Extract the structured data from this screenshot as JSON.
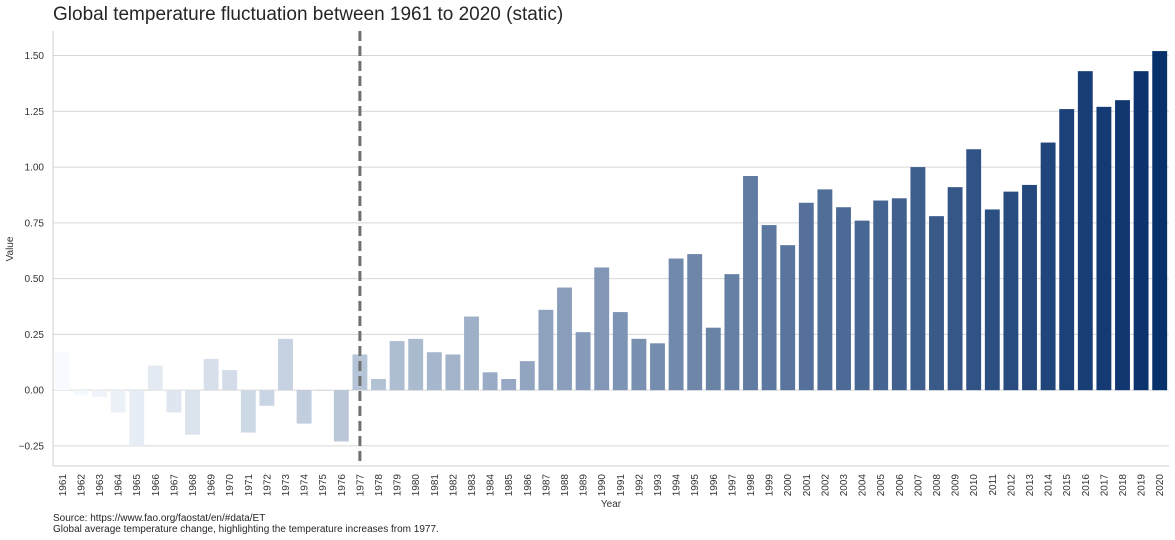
{
  "chart_data": {
    "type": "bar",
    "title": "Global temperature fluctuation between 1961 to 2020 (static)",
    "xlabel": "Year",
    "ylabel": "Value",
    "ylim": [
      -0.34,
      1.61
    ],
    "yticks": [
      -0.25,
      0.0,
      0.25,
      0.5,
      0.75,
      1.0,
      1.25,
      1.5
    ],
    "ytick_labels": [
      "−0.25",
      "0.00",
      "0.25",
      "0.50",
      "0.75",
      "1.00",
      "1.25",
      "1.50"
    ],
    "grid": "horizontal",
    "categories": [
      "1961",
      "1962",
      "1963",
      "1964",
      "1965",
      "1966",
      "1967",
      "1968",
      "1969",
      "1970",
      "1971",
      "1972",
      "1973",
      "1974",
      "1975",
      "1976",
      "1977",
      "1978",
      "1979",
      "1980",
      "1981",
      "1982",
      "1983",
      "1984",
      "1985",
      "1986",
      "1987",
      "1988",
      "1989",
      "1990",
      "1991",
      "1992",
      "1993",
      "1994",
      "1995",
      "1996",
      "1997",
      "1998",
      "1999",
      "2000",
      "2001",
      "2002",
      "2003",
      "2004",
      "2005",
      "2006",
      "2007",
      "2008",
      "2009",
      "2010",
      "2011",
      "2012",
      "2013",
      "2014",
      "2015",
      "2016",
      "2017",
      "2018",
      "2019",
      "2020"
    ],
    "values": [
      0.17,
      -0.02,
      -0.03,
      -0.1,
      -0.25,
      0.11,
      -0.1,
      -0.2,
      0.14,
      0.09,
      -0.19,
      -0.07,
      0.23,
      -0.15,
      0.0,
      -0.23,
      0.16,
      0.05,
      0.22,
      0.23,
      0.17,
      0.16,
      0.33,
      0.08,
      0.05,
      0.13,
      0.36,
      0.46,
      0.26,
      0.55,
      0.35,
      0.23,
      0.21,
      0.59,
      0.61,
      0.28,
      0.52,
      0.96,
      0.74,
      0.65,
      0.84,
      0.9,
      0.82,
      0.76,
      0.85,
      0.86,
      1.0,
      0.78,
      0.91,
      1.08,
      0.81,
      0.89,
      0.92,
      1.11,
      1.26,
      1.43,
      1.27,
      1.3,
      1.43,
      1.52
    ],
    "highlight_line_year": "1977",
    "palette": [
      "#f7fbff",
      "#08306b"
    ],
    "highlight_line_color": "#707070"
  },
  "footer": {
    "source": "Source: https://www.fao.org/faostat/en/#data/ET",
    "caption": "Global average temperature change, highlighting the temperature increases from 1977."
  }
}
